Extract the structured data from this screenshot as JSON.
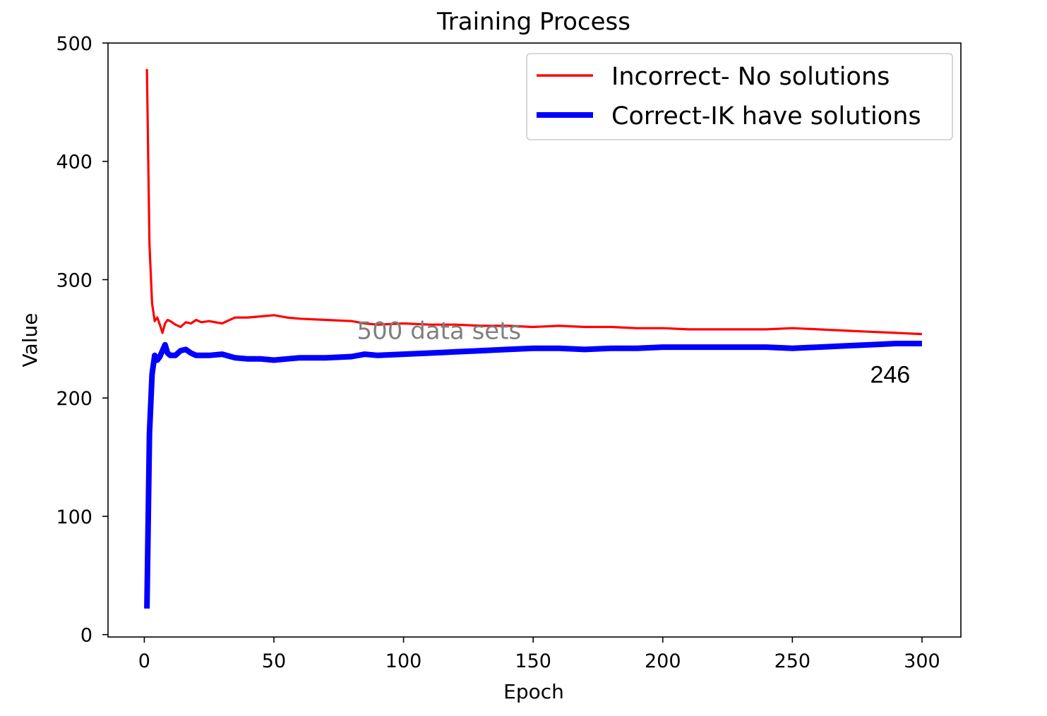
{
  "chart_data": {
    "type": "line",
    "title": "Training Process",
    "xlabel": "Epoch",
    "ylabel": "Value",
    "xlim": [
      -14,
      315
    ],
    "ylim": [
      -2,
      500
    ],
    "xticks": [
      0,
      50,
      100,
      150,
      200,
      250,
      300
    ],
    "yticks": [
      0,
      100,
      200,
      300,
      400,
      500
    ],
    "grid": false,
    "legend_position": "top-right",
    "series": [
      {
        "name": "Incorrect- No solutions",
        "color": "#ff0000",
        "line_weight": "thin",
        "x": [
          1,
          2,
          3,
          4,
          5,
          6,
          7,
          8,
          9,
          10,
          12,
          14,
          16,
          18,
          20,
          22,
          25,
          30,
          35,
          40,
          45,
          50,
          55,
          60,
          70,
          80,
          85,
          90,
          100,
          110,
          120,
          130,
          140,
          150,
          160,
          170,
          180,
          190,
          200,
          210,
          220,
          230,
          240,
          250,
          260,
          270,
          280,
          290,
          300
        ],
        "y": [
          478,
          330,
          280,
          265,
          268,
          262,
          255,
          263,
          266,
          265,
          262,
          260,
          264,
          263,
          266,
          264,
          265,
          263,
          268,
          268,
          269,
          270,
          268,
          267,
          266,
          265,
          263,
          262,
          263,
          262,
          262,
          261,
          261,
          260,
          261,
          260,
          260,
          259,
          259,
          258,
          258,
          258,
          258,
          259,
          258,
          257,
          256,
          255,
          254
        ]
      },
      {
        "name": "Correct-IK have solutions",
        "color": "#0000ff",
        "line_weight": "thick",
        "x": [
          1,
          2,
          3,
          4,
          5,
          6,
          7,
          8,
          9,
          10,
          12,
          14,
          16,
          18,
          20,
          22,
          25,
          30,
          35,
          40,
          45,
          50,
          55,
          60,
          70,
          80,
          85,
          90,
          100,
          110,
          120,
          130,
          140,
          150,
          160,
          170,
          180,
          190,
          200,
          210,
          220,
          230,
          240,
          250,
          260,
          270,
          280,
          290,
          300
        ],
        "y": [
          22,
          170,
          220,
          236,
          232,
          235,
          240,
          245,
          238,
          236,
          236,
          240,
          241,
          238,
          236,
          236,
          236,
          237,
          234,
          233,
          233,
          232,
          233,
          234,
          234,
          235,
          237,
          236,
          237,
          238,
          239,
          240,
          241,
          242,
          242,
          241,
          242,
          242,
          243,
          243,
          243,
          243,
          243,
          242,
          243,
          244,
          245,
          246,
          246
        ]
      }
    ],
    "annotations": [
      {
        "text": "500 data sets",
        "x": 82,
        "y": 250,
        "color": "#808080"
      },
      {
        "text": "246",
        "x": 280,
        "y": 213,
        "color": "#000000"
      }
    ]
  }
}
